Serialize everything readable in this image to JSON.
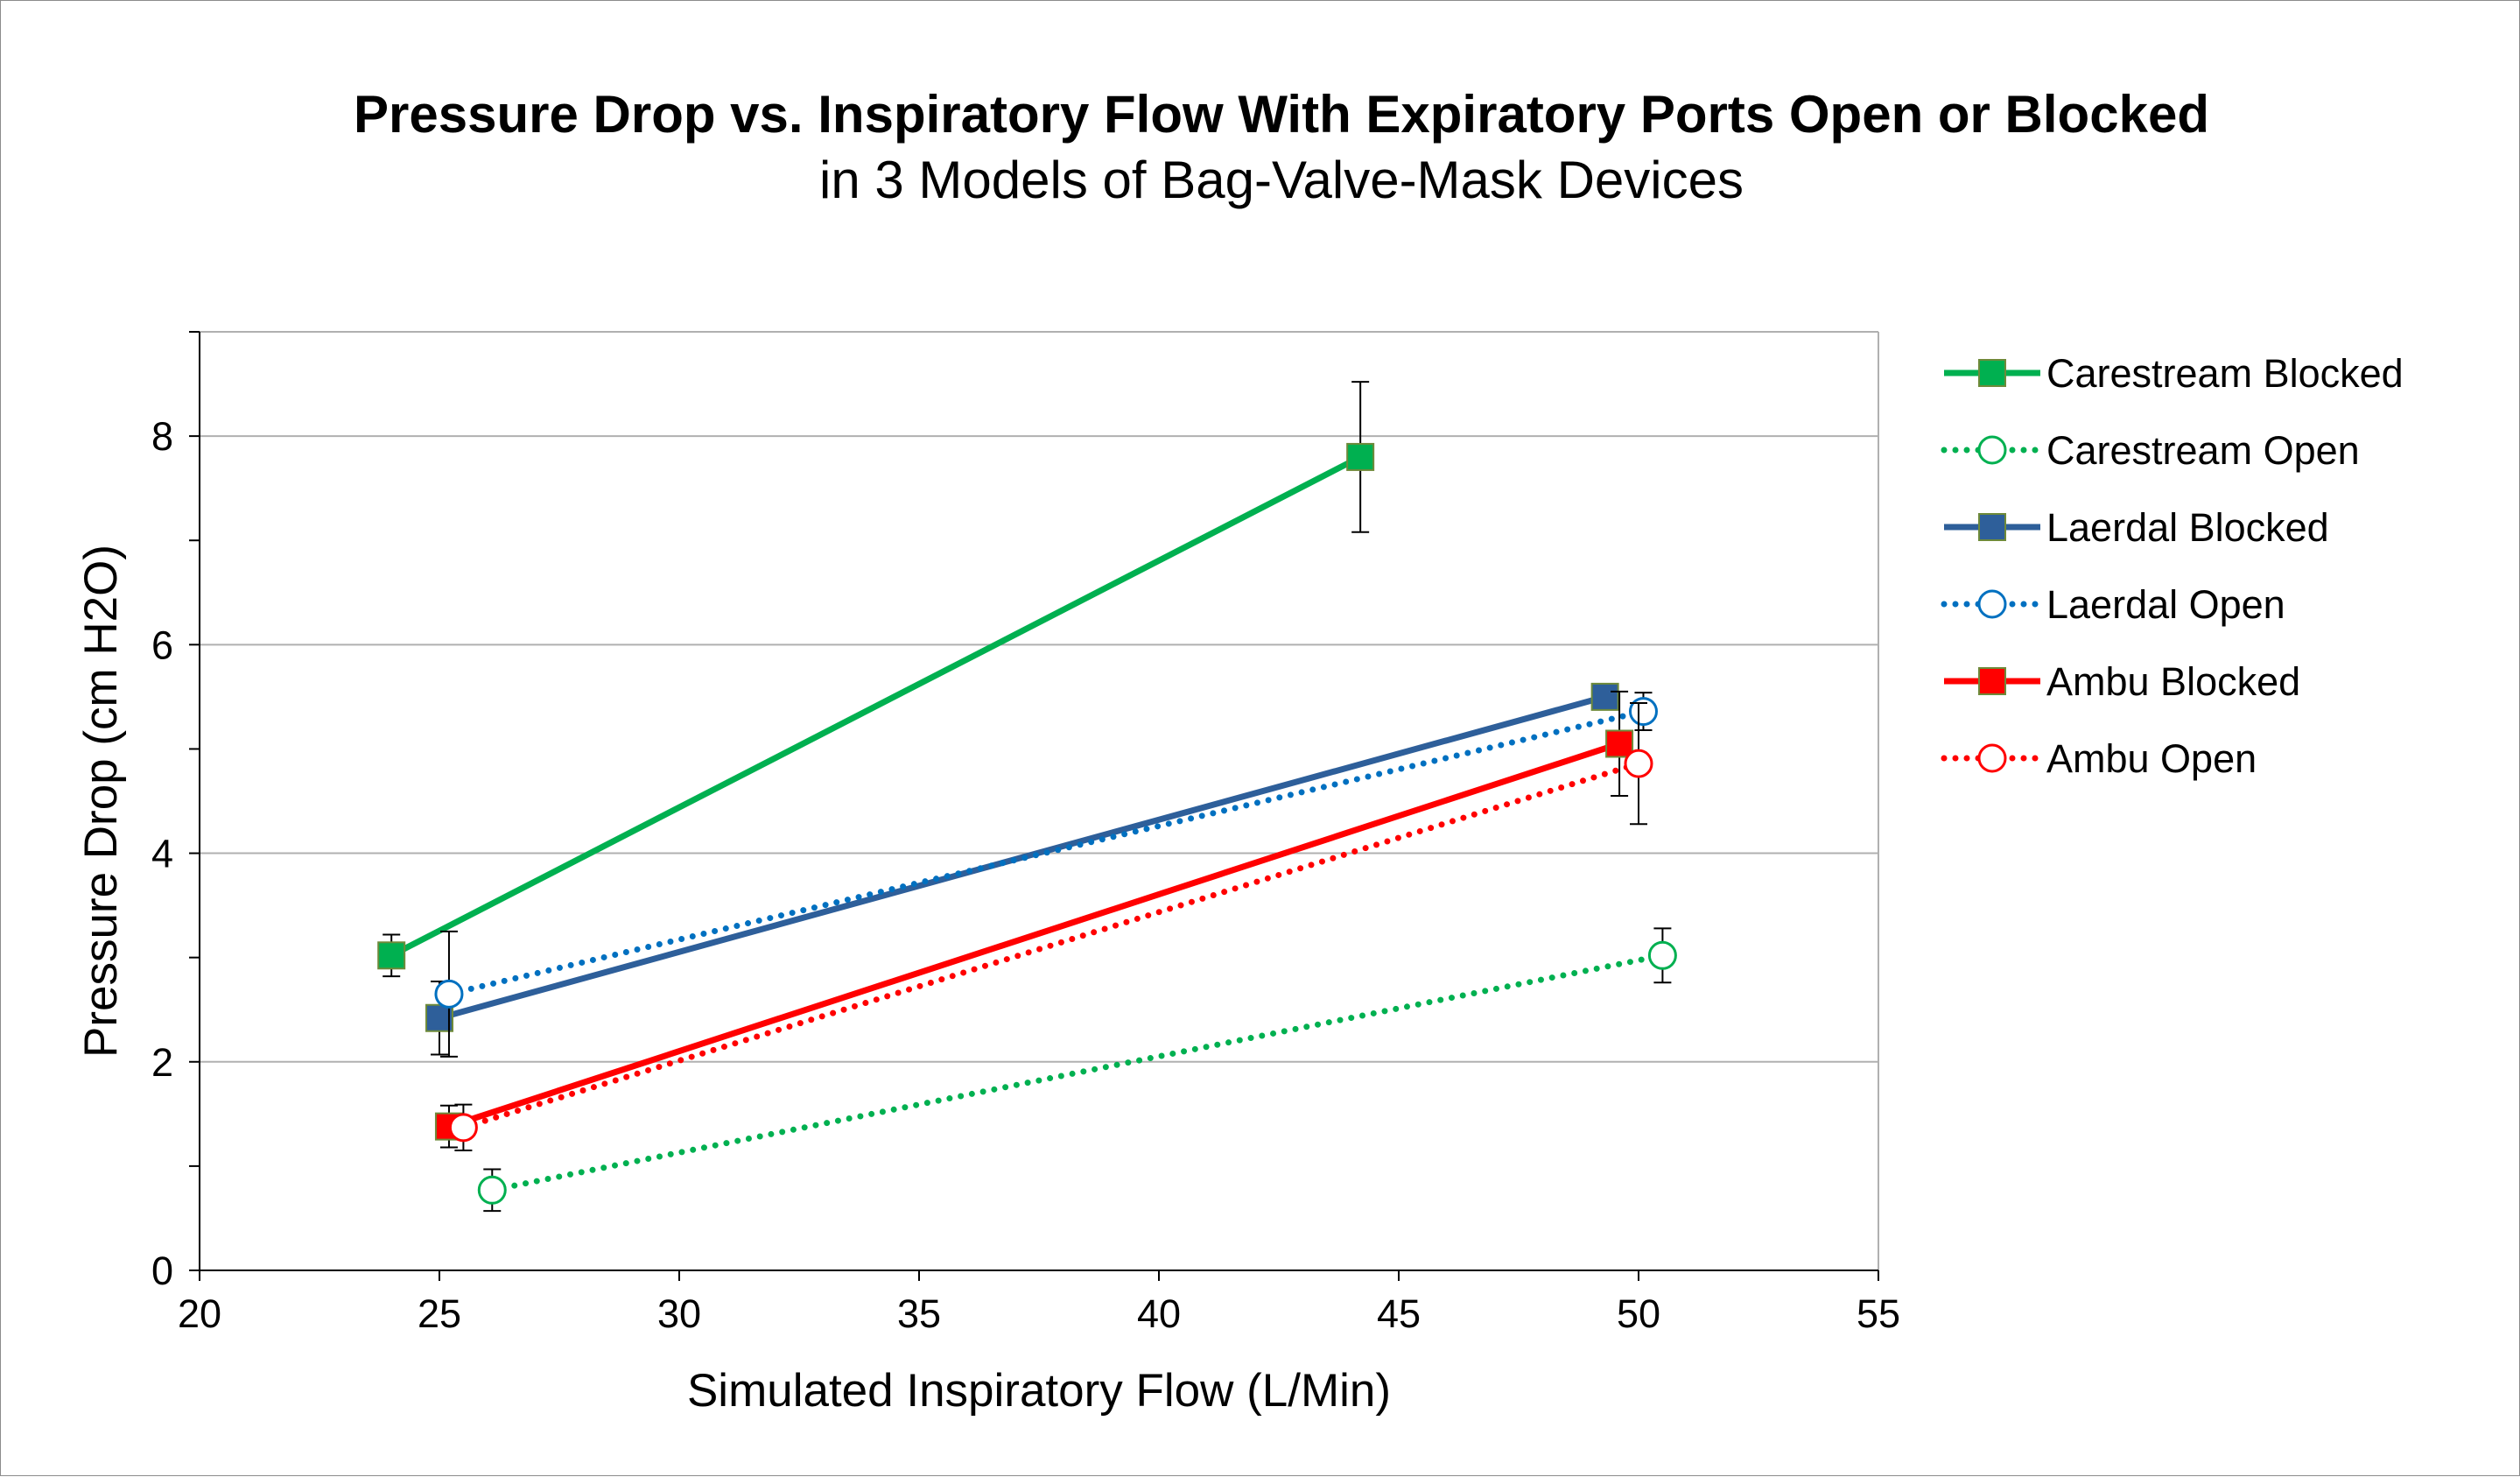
{
  "chart_data": {
    "type": "scatter",
    "title": "Pressure Drop vs. Inspiratory Flow With Expiratory Ports Open or Blocked",
    "subtitle": "in 3 Models of Bag-Valve-Mask Devices",
    "xlabel": "Simulated Inspiratory Flow (L/Min)",
    "ylabel": "Pressure Drop (cm H2O)",
    "xlim": [
      20,
      55
    ],
    "ylim": [
      0,
      9
    ],
    "xticks": [
      20,
      25,
      30,
      35,
      40,
      45,
      50,
      55
    ],
    "yticks": [
      0,
      2,
      4,
      6,
      8
    ],
    "grid": "horizontal",
    "legend_position": "right",
    "series": [
      {
        "name": "Carestream Blocked",
        "color": "#00b050",
        "line": "solid",
        "marker": "filled-square",
        "points": [
          {
            "x": 24.0,
            "y": 3.02,
            "err": 0.2
          },
          {
            "x": 44.2,
            "y": 7.8,
            "err": 0.72
          }
        ]
      },
      {
        "name": "Carestream Open",
        "color": "#00b050",
        "line": "dotted",
        "marker": "open-circle",
        "points": [
          {
            "x": 26.1,
            "y": 0.77,
            "err": 0.2
          },
          {
            "x": 50.5,
            "y": 3.02,
            "err": 0.26
          }
        ]
      },
      {
        "name": "Laerdal Blocked",
        "color": "#2e5f9a",
        "line": "solid",
        "marker": "filled-square",
        "points": [
          {
            "x": 25.0,
            "y": 2.42,
            "err": 0.35
          },
          {
            "x": 49.3,
            "y": 5.5,
            "err": 0.0
          }
        ]
      },
      {
        "name": "Laerdal Open",
        "color": "#0070c0",
        "line": "dotted",
        "marker": "open-circle",
        "points": [
          {
            "x": 25.2,
            "y": 2.65,
            "err": 0.6
          },
          {
            "x": 50.1,
            "y": 5.36,
            "err": 0.18
          }
        ]
      },
      {
        "name": "Ambu Blocked",
        "color": "#ff0000",
        "line": "solid",
        "marker": "filled-square",
        "points": [
          {
            "x": 25.2,
            "y": 1.38,
            "err": 0.2
          },
          {
            "x": 49.6,
            "y": 5.05,
            "err": 0.5
          }
        ]
      },
      {
        "name": "Ambu Open",
        "color": "#ff0000",
        "line": "dotted",
        "marker": "open-circle",
        "points": [
          {
            "x": 25.5,
            "y": 1.37,
            "err": 0.22
          },
          {
            "x": 50.0,
            "y": 4.86,
            "err": 0.58
          }
        ]
      }
    ]
  }
}
